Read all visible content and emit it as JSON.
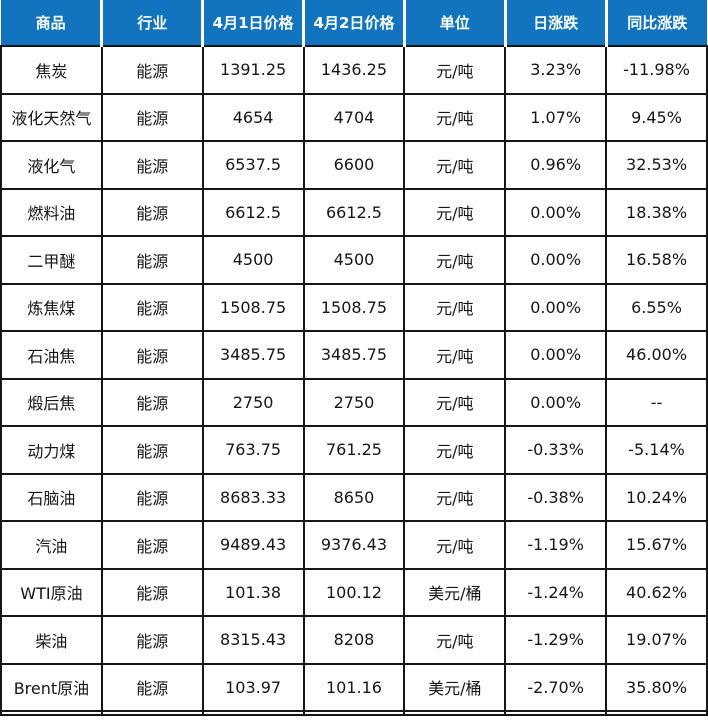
{
  "colors": {
    "header_bg": "#1273be",
    "header_text": "#ffffff",
    "grid_line": "#161616",
    "up_red": "#f03128",
    "down_green": "#21a34d",
    "flat_black": "#161616"
  },
  "table": {
    "headers": [
      "商品",
      "行业",
      "4月1日价格",
      "4月2日价格",
      "单位",
      "日涨跌",
      "同比涨跌"
    ],
    "rows": [
      {
        "commodity": "焦炭",
        "industry": "能源",
        "price_apr1": "1391.25",
        "price_apr2": "1436.25",
        "unit": "元/吨",
        "daily_change": "3.23%",
        "yoy_change": "-11.98%",
        "daily_trend": "up",
        "yoy_trend": "down"
      },
      {
        "commodity": "液化天然气",
        "industry": "能源",
        "price_apr1": "4654",
        "price_apr2": "4704",
        "unit": "元/吨",
        "daily_change": "1.07%",
        "yoy_change": "9.45%",
        "daily_trend": "up",
        "yoy_trend": "up"
      },
      {
        "commodity": "液化气",
        "industry": "能源",
        "price_apr1": "6537.5",
        "price_apr2": "6600",
        "unit": "元/吨",
        "daily_change": "0.96%",
        "yoy_change": "32.53%",
        "daily_trend": "up",
        "yoy_trend": "up"
      },
      {
        "commodity": "燃料油",
        "industry": "能源",
        "price_apr1": "6612.5",
        "price_apr2": "6612.5",
        "unit": "元/吨",
        "daily_change": "0.00%",
        "yoy_change": "18.38%",
        "daily_trend": "flat",
        "yoy_trend": "up"
      },
      {
        "commodity": "二甲醚",
        "industry": "能源",
        "price_apr1": "4500",
        "price_apr2": "4500",
        "unit": "元/吨",
        "daily_change": "0.00%",
        "yoy_change": "16.58%",
        "daily_trend": "flat",
        "yoy_trend": "up"
      },
      {
        "commodity": "炼焦煤",
        "industry": "能源",
        "price_apr1": "1508.75",
        "price_apr2": "1508.75",
        "unit": "元/吨",
        "daily_change": "0.00%",
        "yoy_change": "6.55%",
        "daily_trend": "flat",
        "yoy_trend": "up"
      },
      {
        "commodity": "石油焦",
        "industry": "能源",
        "price_apr1": "3485.75",
        "price_apr2": "3485.75",
        "unit": "元/吨",
        "daily_change": "0.00%",
        "yoy_change": "46.00%",
        "daily_trend": "flat",
        "yoy_trend": "up"
      },
      {
        "commodity": "煅后焦",
        "industry": "能源",
        "price_apr1": "2750",
        "price_apr2": "2750",
        "unit": "元/吨",
        "daily_change": "0.00%",
        "yoy_change": "--",
        "daily_trend": "flat",
        "yoy_trend": "flat"
      },
      {
        "commodity": "动力煤",
        "industry": "能源",
        "price_apr1": "763.75",
        "price_apr2": "761.25",
        "unit": "元/吨",
        "daily_change": "-0.33%",
        "yoy_change": "-5.14%",
        "daily_trend": "down",
        "yoy_trend": "down"
      },
      {
        "commodity": "石脑油",
        "industry": "能源",
        "price_apr1": "8683.33",
        "price_apr2": "8650",
        "unit": "元/吨",
        "daily_change": "-0.38%",
        "yoy_change": "10.24%",
        "daily_trend": "down",
        "yoy_trend": "up"
      },
      {
        "commodity": "汽油",
        "industry": "能源",
        "price_apr1": "9489.43",
        "price_apr2": "9376.43",
        "unit": "元/吨",
        "daily_change": "-1.19%",
        "yoy_change": "15.67%",
        "daily_trend": "down",
        "yoy_trend": "up"
      },
      {
        "commodity": "WTI原油",
        "industry": "能源",
        "price_apr1": "101.38",
        "price_apr2": "100.12",
        "unit": "美元/桶",
        "daily_change": "-1.24%",
        "yoy_change": "40.62%",
        "daily_trend": "down",
        "yoy_trend": "up"
      },
      {
        "commodity": "柴油",
        "industry": "能源",
        "price_apr1": "8315.43",
        "price_apr2": "8208",
        "unit": "元/吨",
        "daily_change": "-1.29%",
        "yoy_change": "19.07%",
        "daily_trend": "down",
        "yoy_trend": "up"
      },
      {
        "commodity": "Brent原油",
        "industry": "能源",
        "price_apr1": "103.97",
        "price_apr2": "101.16",
        "unit": "美元/桶",
        "daily_change": "-2.70%",
        "yoy_change": "35.80%",
        "daily_trend": "down",
        "yoy_trend": "up"
      }
    ]
  },
  "chart_data": {
    "type": "table",
    "columns": [
      "商品",
      "行业",
      "4月1日价格",
      "4月2日价格",
      "单位",
      "日涨跌",
      "同比涨跌"
    ],
    "rows": [
      [
        "焦炭",
        "能源",
        1391.25,
        1436.25,
        "元/吨",
        "3.23%",
        "-11.98%"
      ],
      [
        "液化天然气",
        "能源",
        4654,
        4704,
        "元/吨",
        "1.07%",
        "9.45%"
      ],
      [
        "液化气",
        "能源",
        6537.5,
        6600,
        "元/吨",
        "0.96%",
        "32.53%"
      ],
      [
        "燃料油",
        "能源",
        6612.5,
        6612.5,
        "元/吨",
        "0.00%",
        "18.38%"
      ],
      [
        "二甲醚",
        "能源",
        4500,
        4500,
        "元/吨",
        "0.00%",
        "16.58%"
      ],
      [
        "炼焦煤",
        "能源",
        1508.75,
        1508.75,
        "元/吨",
        "0.00%",
        "6.55%"
      ],
      [
        "石油焦",
        "能源",
        3485.75,
        3485.75,
        "元/吨",
        "0.00%",
        "46.00%"
      ],
      [
        "煅后焦",
        "能源",
        2750,
        2750,
        "元/吨",
        "0.00%",
        "--"
      ],
      [
        "动力煤",
        "能源",
        763.75,
        761.25,
        "元/吨",
        "-0.33%",
        "-5.14%"
      ],
      [
        "石脑油",
        "能源",
        8683.33,
        8650,
        "元/吨",
        "-0.38%",
        "10.24%"
      ],
      [
        "汽油",
        "能源",
        9489.43,
        9376.43,
        "元/吨",
        "-1.19%",
        "15.67%"
      ],
      [
        "WTI原油",
        "能源",
        101.38,
        100.12,
        "美元/桶",
        "-1.24%",
        "40.62%"
      ],
      [
        "柴油",
        "能源",
        8315.43,
        8208,
        "元/吨",
        "-1.29%",
        "19.07%"
      ],
      [
        "Brent原油",
        "能源",
        103.97,
        101.16,
        "美元/桶",
        "-2.70%",
        "35.80%"
      ]
    ]
  }
}
